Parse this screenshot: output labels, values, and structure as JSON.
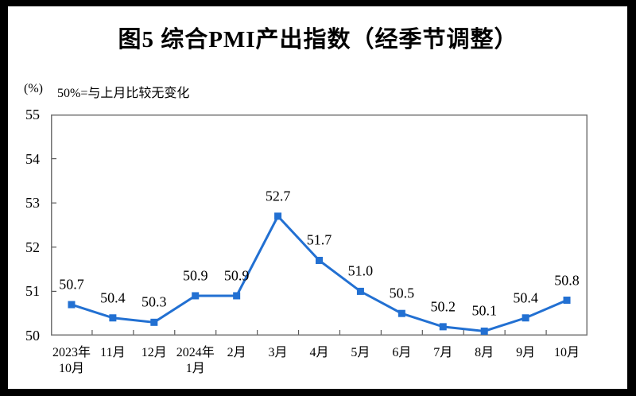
{
  "chart_data": {
    "type": "line",
    "title": "图5 综合PMI产出指数（经季节调整）",
    "unit_label": "(%)",
    "note": "50%=与上月比较无变化",
    "categories": [
      [
        "2023年",
        "10月"
      ],
      [
        "11月"
      ],
      [
        "12月"
      ],
      [
        "2024年",
        "1月"
      ],
      [
        "2月"
      ],
      [
        "3月"
      ],
      [
        "4月"
      ],
      [
        "5月"
      ],
      [
        "6月"
      ],
      [
        "7月"
      ],
      [
        "8月"
      ],
      [
        "9月"
      ],
      [
        "10月"
      ]
    ],
    "values": [
      50.7,
      50.4,
      50.3,
      50.9,
      50.9,
      52.7,
      51.7,
      51.0,
      50.5,
      50.2,
      50.1,
      50.4,
      50.8
    ],
    "ylim": [
      50,
      55
    ],
    "ytick_step": 1,
    "ytick_labels": [
      "55",
      "54",
      "53",
      "52",
      "51",
      "50"
    ],
    "grid": false,
    "legend": "none",
    "line_color": "#2270D2",
    "marker": "square",
    "plot_border_color": "#737373",
    "tick_color": "#595959"
  }
}
